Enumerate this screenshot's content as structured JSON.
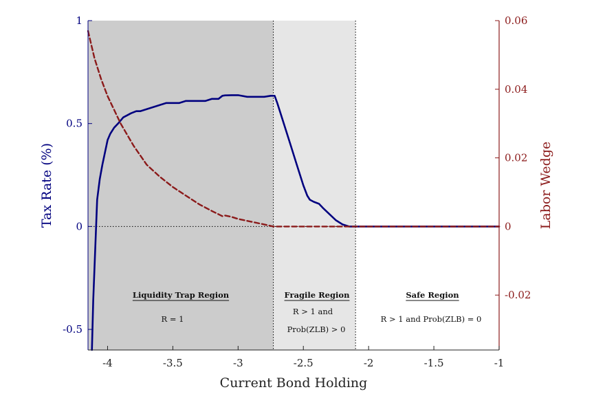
{
  "chart_data": {
    "type": "line",
    "xlabel": "Current Bond Holding",
    "ylabel_left": "Tax Rate (%)",
    "ylabel_right": "Labor Wedge",
    "xlim": [
      -4.15,
      -1
    ],
    "ylim_left": [
      -0.6,
      1
    ],
    "ylim_right": [
      -0.036,
      0.06
    ],
    "x_ticks": [
      "-4",
      "-3.5",
      "-3",
      "-2.5",
      "-2",
      "-1.5",
      "-1"
    ],
    "x_tick_values": [
      -4,
      -3.5,
      -3,
      -2.5,
      -2,
      -1.5,
      -1
    ],
    "y_left_ticks": [
      "-0.5",
      "0",
      "0.5",
      "1"
    ],
    "y_left_tick_values": [
      -0.5,
      0,
      0.5,
      1
    ],
    "y_right_ticks": [
      "-0.02",
      "0",
      "0.02",
      "0.04",
      "0.06"
    ],
    "y_right_tick_values": [
      -0.02,
      0,
      0.02,
      0.04,
      0.06
    ],
    "colors": {
      "tax": "#00007f",
      "wedge": "#8b1a1a",
      "trap": "#cccccc",
      "fragile": "#e6e6e6"
    },
    "region_bounds": {
      "trap": [
        -4.15,
        -2.73
      ],
      "fragile": [
        -2.73,
        -2.1
      ],
      "safe": [
        -2.1,
        -1
      ]
    },
    "regions": [
      {
        "title": "Liquidity Trap Region",
        "lines": [
          "R = 1"
        ]
      },
      {
        "title": "Fragile Region",
        "lines": [
          "R > 1 and",
          "Prob(ZLB) > 0"
        ]
      },
      {
        "title": "Safe Region",
        "lines": [
          "R > 1 and Prob(ZLB) = 0"
        ]
      }
    ],
    "series": [
      {
        "axis": "left",
        "style": "solid",
        "x": [
          -4.12,
          -4.11,
          -4.08,
          -4.06,
          -4.04,
          -4.02,
          -4.0,
          -3.98,
          -3.95,
          -3.92,
          -3.88,
          -3.85,
          -3.82,
          -3.78,
          -3.75,
          -3.7,
          -3.65,
          -3.6,
          -3.55,
          -3.5,
          -3.45,
          -3.4,
          -3.35,
          -3.3,
          -3.25,
          -3.2,
          -3.15,
          -3.12,
          -3.1,
          -3.05,
          -3.0,
          -2.93,
          -2.9,
          -2.85,
          -2.8,
          -2.75,
          -2.72,
          -2.7,
          -2.65,
          -2.6,
          -2.55,
          -2.5,
          -2.47,
          -2.45,
          -2.42,
          -2.38,
          -2.35,
          -2.3,
          -2.25,
          -2.2,
          -2.15,
          -2.12,
          -2.1,
          -2.0,
          -1.5,
          -1.0
        ],
        "y": [
          -0.6,
          -0.36,
          0.13,
          0.23,
          0.3,
          0.36,
          0.42,
          0.45,
          0.48,
          0.5,
          0.53,
          0.54,
          0.55,
          0.56,
          0.56,
          0.57,
          0.58,
          0.59,
          0.6,
          0.6,
          0.6,
          0.61,
          0.61,
          0.61,
          0.61,
          0.62,
          0.62,
          0.635,
          0.637,
          0.638,
          0.638,
          0.63,
          0.63,
          0.63,
          0.63,
          0.635,
          0.635,
          0.6,
          0.5,
          0.4,
          0.3,
          0.2,
          0.15,
          0.13,
          0.12,
          0.11,
          0.09,
          0.06,
          0.03,
          0.01,
          0.0,
          0.0,
          0.0,
          0.0,
          0.0,
          0.0
        ]
      },
      {
        "axis": "right",
        "style": "dashed",
        "x": [
          -4.15,
          -4.1,
          -4.05,
          -4.0,
          -3.9,
          -3.8,
          -3.7,
          -3.6,
          -3.5,
          -3.4,
          -3.3,
          -3.2,
          -3.12,
          -3.1,
          -3.05,
          -3.0,
          -2.9,
          -2.8,
          -2.73,
          -2.5,
          -2.0,
          -1.5,
          -1.0
        ],
        "y": [
          0.057,
          0.049,
          0.043,
          0.038,
          0.03,
          0.0235,
          0.018,
          0.0145,
          0.0115,
          0.009,
          0.0065,
          0.0045,
          0.003,
          0.0032,
          0.0028,
          0.0022,
          0.0014,
          0.0006,
          0.0,
          0.0,
          0.0,
          0.0,
          0.0
        ]
      }
    ]
  }
}
